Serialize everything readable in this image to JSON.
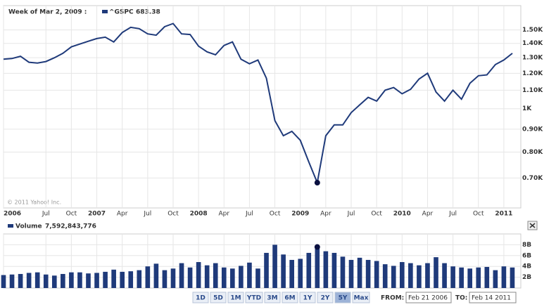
{
  "chart_data": [
    {
      "type": "line",
      "log_scale": true,
      "grid": true,
      "crosshair": {
        "date_label": "Week of Mar 2, 2009 :",
        "x": "2009-03",
        "value": 683.38
      },
      "copyright": "© 2011 Yahoo! Inc.",
      "x": [
        "2006-02",
        "2006-03",
        "2006-04",
        "2006-05",
        "2006-06",
        "2006-07",
        "2006-08",
        "2006-09",
        "2006-10",
        "2006-11",
        "2006-12",
        "2007-01",
        "2007-02",
        "2007-03",
        "2007-04",
        "2007-05",
        "2007-06",
        "2007-07",
        "2007-08",
        "2007-09",
        "2007-10",
        "2007-11",
        "2007-12",
        "2008-01",
        "2008-02",
        "2008-03",
        "2008-04",
        "2008-05",
        "2008-06",
        "2008-07",
        "2008-08",
        "2008-09",
        "2008-10",
        "2008-11",
        "2008-12",
        "2009-01",
        "2009-02",
        "2009-03",
        "2009-04",
        "2009-05",
        "2009-06",
        "2009-07",
        "2009-08",
        "2009-09",
        "2009-10",
        "2009-11",
        "2009-12",
        "2010-01",
        "2010-02",
        "2010-03",
        "2010-04",
        "2010-05",
        "2010-06",
        "2010-07",
        "2010-08",
        "2010-09",
        "2010-10",
        "2010-11",
        "2010-12",
        "2011-01",
        "2011-02"
      ],
      "series": [
        {
          "name": "^GSPC",
          "color": "#1f3a7a",
          "values": [
            1290,
            1295,
            1310,
            1270,
            1265,
            1275,
            1300,
            1330,
            1375,
            1395,
            1415,
            1435,
            1445,
            1410,
            1480,
            1520,
            1510,
            1470,
            1460,
            1525,
            1550,
            1470,
            1465,
            1380,
            1340,
            1320,
            1385,
            1410,
            1290,
            1260,
            1285,
            1170,
            940,
            870,
            890,
            850,
            760,
            683.38,
            870,
            920,
            920,
            980,
            1020,
            1060,
            1040,
            1100,
            1115,
            1080,
            1105,
            1165,
            1200,
            1090,
            1040,
            1100,
            1050,
            1140,
            1185,
            1190,
            1255,
            1285,
            1330
          ]
        }
      ],
      "value_labels": {
        "37": "683.38"
      },
      "xlim": [
        "2006-02",
        "2011-03"
      ],
      "ylim": [
        600,
        1700
      ],
      "xticks": [
        {
          "value": "2006-02",
          "label": "2006"
        },
        {
          "value": "2006-07",
          "label": "Jul"
        },
        {
          "value": "2006-10",
          "label": "Oct"
        },
        {
          "value": "2007-01",
          "label": "2007"
        },
        {
          "value": "2007-04",
          "label": "Apr"
        },
        {
          "value": "2007-07",
          "label": "Jul"
        },
        {
          "value": "2007-10",
          "label": "Oct"
        },
        {
          "value": "2008-01",
          "label": "2008"
        },
        {
          "value": "2008-04",
          "label": "Apr"
        },
        {
          "value": "2008-07",
          "label": "Jul"
        },
        {
          "value": "2008-10",
          "label": "Oct"
        },
        {
          "value": "2009-01",
          "label": "2009"
        },
        {
          "value": "2009-04",
          "label": "Apr"
        },
        {
          "value": "2009-07",
          "label": "Jul"
        },
        {
          "value": "2009-10",
          "label": "Oct"
        },
        {
          "value": "2010-01",
          "label": "2010"
        },
        {
          "value": "2010-04",
          "label": "Apr"
        },
        {
          "value": "2010-07",
          "label": "Jul"
        },
        {
          "value": "2010-10",
          "label": "Oct"
        },
        {
          "value": "2011-01",
          "label": "2011"
        }
      ],
      "yticks": [
        {
          "value": 700,
          "label": "0.70K"
        },
        {
          "value": 800,
          "label": "0.80K"
        },
        {
          "value": 900,
          "label": "0.90K"
        },
        {
          "value": 1000,
          "label": "1K"
        },
        {
          "value": 1100,
          "label": "1.10K"
        },
        {
          "value": 1200,
          "label": "1.20K"
        },
        {
          "value": 1300,
          "label": "1.30K"
        },
        {
          "value": 1400,
          "label": "1.40K"
        },
        {
          "value": 1500,
          "label": "1.50K"
        }
      ]
    },
    {
      "type": "bar",
      "title": "Volume",
      "color": "#1f3a7a",
      "crosshair": {
        "x": "2009-03",
        "value": 7592843776,
        "label": "7,592,843,776"
      },
      "values": [
        2400000000,
        2500000000,
        2600000000,
        2800000000,
        2900000000,
        2500000000,
        2300000000,
        2600000000,
        2900000000,
        2900000000,
        2700000000,
        2800000000,
        3000000000,
        3400000000,
        3000000000,
        3100000000,
        3300000000,
        4000000000,
        4500000000,
        3300000000,
        3600000000,
        4600000000,
        3800000000,
        4800000000,
        4200000000,
        4600000000,
        3800000000,
        3600000000,
        4100000000,
        4700000000,
        3600000000,
        6500000000,
        8000000000,
        6200000000,
        5200000000,
        5400000000,
        6500000000,
        7592843776,
        6800000000,
        6500000000,
        5800000000,
        5200000000,
        5600000000,
        5200000000,
        5000000000,
        4400000000,
        4100000000,
        4800000000,
        4600000000,
        4200000000,
        4600000000,
        5700000000,
        4600000000,
        4000000000,
        3800000000,
        3600000000,
        3800000000,
        3900000000,
        3300000000,
        4000000000,
        3800000000
      ],
      "ylim": [
        0,
        10000000000
      ],
      "yticks": [
        {
          "value": 2000000000,
          "label": "2B"
        },
        {
          "value": 4000000000,
          "label": "4B"
        },
        {
          "value": 6000000000,
          "label": "6B"
        },
        {
          "value": 8000000000,
          "label": "8B"
        }
      ]
    }
  ],
  "controls": {
    "ranges": [
      "1D",
      "5D",
      "1M",
      "YTD",
      "3M",
      "6M",
      "1Y",
      "2Y",
      "5Y",
      "Max"
    ],
    "active": "5Y",
    "from_label": "FROM:",
    "from": "Feb 21 2006",
    "to_label": "TO:",
    "to": "Feb 14 2011"
  }
}
